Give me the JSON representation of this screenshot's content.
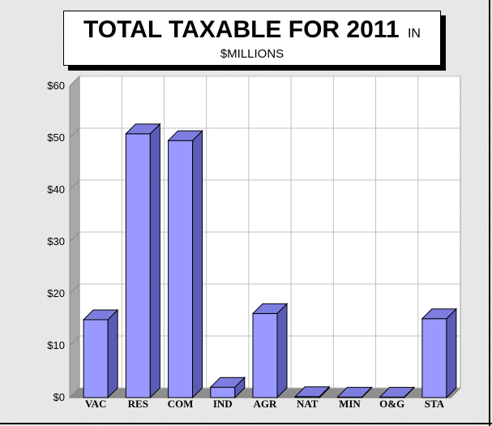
{
  "title": {
    "main": "TOTAL TAXABLE FOR 2011",
    "suffix": "IN",
    "subtitle": "$MILLIONS"
  },
  "colors": {
    "bar_front": "#9999ff",
    "bar_side": "#5c5cb8",
    "bar_top": "#7d7de0",
    "grid": "#c0c0c0"
  },
  "chart_data": {
    "type": "bar",
    "categories": [
      "VAC",
      "RES",
      "COM",
      "IND",
      "AGR",
      "NAT",
      "MIN",
      "O&G",
      "STA"
    ],
    "values": [
      15,
      50.8,
      49.5,
      2,
      16.2,
      0.2,
      0.1,
      0.1,
      15.2
    ],
    "ylim": [
      0,
      60
    ],
    "yticks": [
      "$0",
      "$10",
      "$20",
      "$30",
      "$40",
      "$50",
      "$60"
    ],
    "ytick_values": [
      0,
      10,
      20,
      30,
      40,
      50,
      60
    ],
    "grid": true,
    "three_d": true
  }
}
